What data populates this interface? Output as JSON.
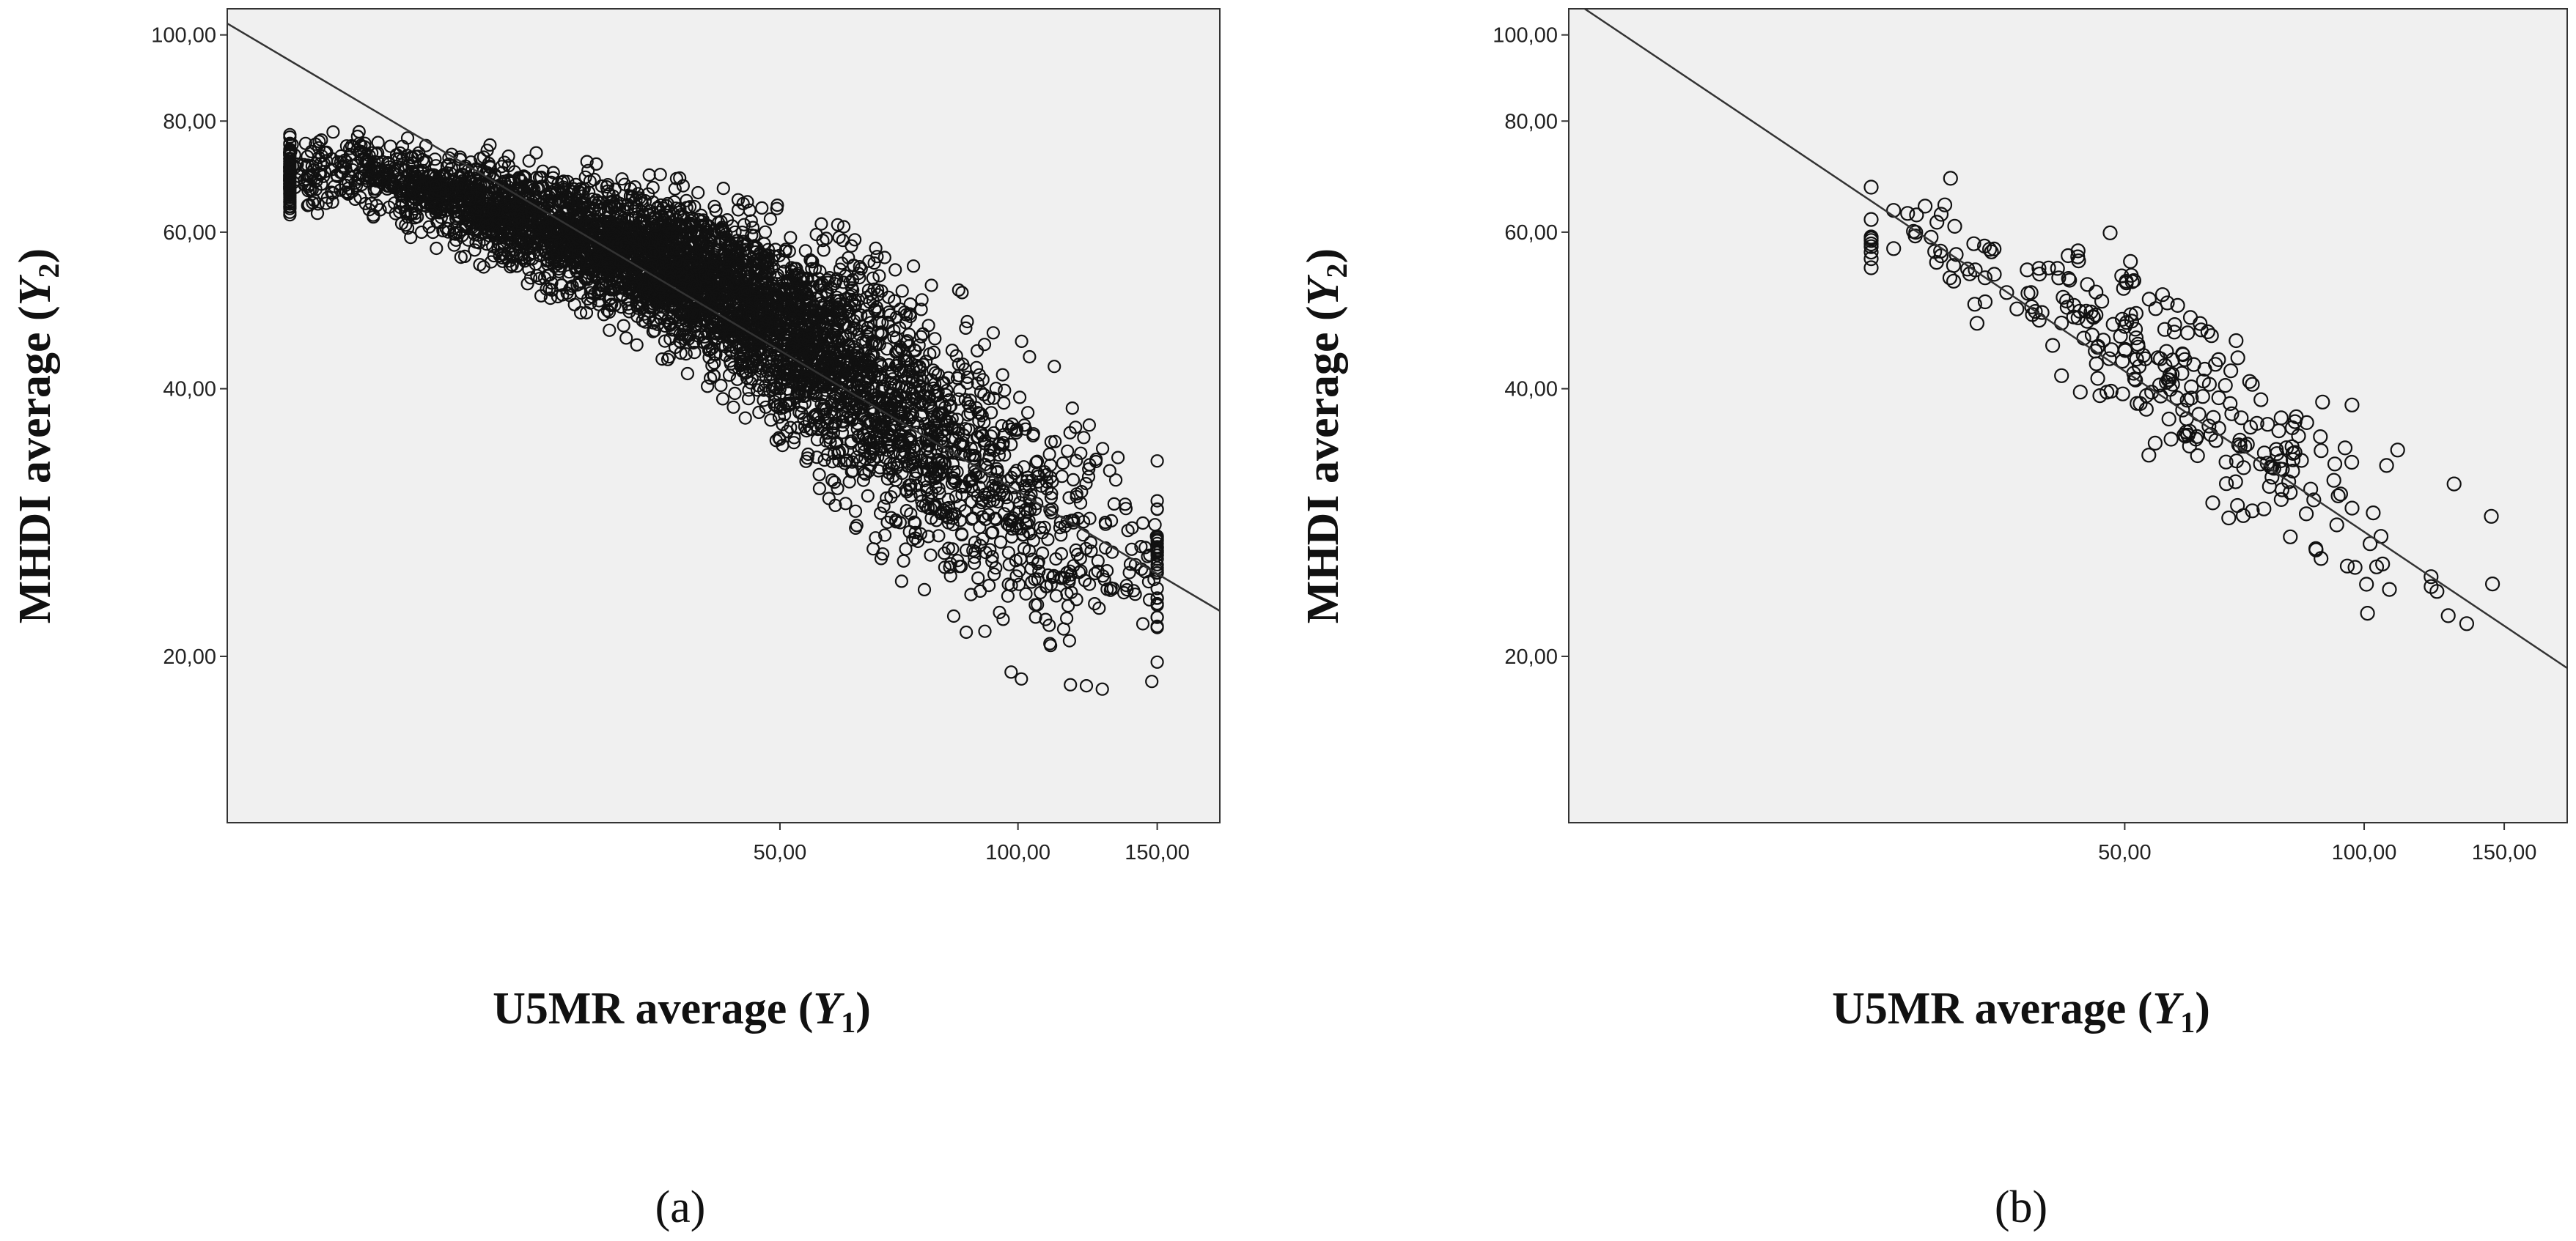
{
  "chart_data": [
    {
      "type": "scatter",
      "panel_label": "(a)",
      "xlabel": "U5MR average (Y1)",
      "ylabel": "MHDI average (Y2)",
      "x_scale": "log",
      "y_scale": "log",
      "xlim": [
        10,
        180
      ],
      "ylim": [
        13,
        107
      ],
      "x_ticks": [
        50,
        100,
        150
      ],
      "x_tick_labels": [
        "50,00",
        "100,00",
        "150,00"
      ],
      "y_ticks": [
        20,
        40,
        60,
        80,
        100
      ],
      "y_tick_labels": [
        "20,00",
        "40,00",
        "60,00",
        "80,00",
        "100,00"
      ],
      "grid": false,
      "fit_line": {
        "x": [
          10,
          180
        ],
        "y": [
          103,
          22.5
        ]
      },
      "n_points": 5000,
      "point_cloud": {
        "x_range": [
          12,
          150
        ],
        "trend": "y = 103 * (x/10)^-0.527",
        "spread_at": [
          {
            "x": 15,
            "y_min": 63,
            "y_max": 78
          },
          {
            "x": 40,
            "y_min": 42,
            "y_max": 66
          },
          {
            "x": 70,
            "y_min": 26,
            "y_max": 55
          },
          {
            "x": 100,
            "y_min": 20,
            "y_max": 43
          },
          {
            "x": 140,
            "y_min": 19,
            "y_max": 34
          }
        ]
      }
    },
    {
      "type": "scatter",
      "panel_label": "(b)",
      "xlabel": "U5MR average (Y1)",
      "ylabel": "MHDI average (Y2)",
      "x_scale": "log",
      "y_scale": "log",
      "xlim": [
        10,
        180
      ],
      "ylim": [
        13,
        107
      ],
      "x_ticks": [
        50,
        100,
        150
      ],
      "x_tick_labels": [
        "50,00",
        "100,00",
        "150,00"
      ],
      "y_ticks": [
        20,
        40,
        60,
        80,
        100
      ],
      "y_tick_labels": [
        "20,00",
        "40,00",
        "60,00",
        "80,00",
        "100,00"
      ],
      "grid": false,
      "fit_line": {
        "x": [
          10,
          180
        ],
        "y": [
          110,
          19.4
        ]
      },
      "n_points": 300,
      "point_cloud": {
        "x_range": [
          24,
          145
        ],
        "trend": "y = 110 * (x/10)^-0.6",
        "spread_at": [
          {
            "x": 26,
            "y_min": 52,
            "y_max": 70
          },
          {
            "x": 45,
            "y_min": 38,
            "y_max": 60
          },
          {
            "x": 70,
            "y_min": 28,
            "y_max": 45
          },
          {
            "x": 100,
            "y_min": 20,
            "y_max": 40
          },
          {
            "x": 140,
            "y_min": 19,
            "y_max": 30
          }
        ]
      }
    }
  ]
}
